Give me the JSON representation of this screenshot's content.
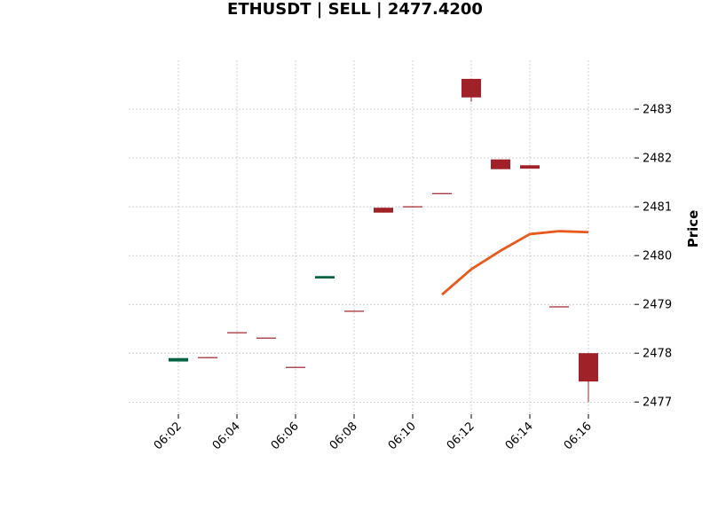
{
  "chart_data": {
    "type": "candlestick",
    "title": "ETHUSDT | SELL | 2477.4200",
    "xlabel": "",
    "ylabel": "Price",
    "ylim": [
      2476.75,
      2484.0
    ],
    "y_ticks": [
      2477,
      2478,
      2479,
      2480,
      2481,
      2482,
      2483
    ],
    "x_ticks": [
      "06:02",
      "06:04",
      "06:06",
      "06:08",
      "06:10",
      "06:12",
      "06:14",
      "06:16"
    ],
    "grid": true,
    "colors": {
      "up": "#006340",
      "down": "#A02128",
      "ma": "#E8591C",
      "grid": "#b0b0b0"
    },
    "candles": [
      {
        "time": "06:02",
        "open": 2477.83,
        "high": 2477.9,
        "low": 2477.83,
        "close": 2477.9
      },
      {
        "time": "06:03",
        "open": 2477.92,
        "high": 2477.92,
        "low": 2477.91,
        "close": 2477.91
      },
      {
        "time": "06:04",
        "open": 2478.43,
        "high": 2478.43,
        "low": 2478.42,
        "close": 2478.42
      },
      {
        "time": "06:05",
        "open": 2478.32,
        "high": 2478.32,
        "low": 2478.31,
        "close": 2478.31
      },
      {
        "time": "06:06",
        "open": 2477.72,
        "high": 2477.72,
        "low": 2477.71,
        "close": 2477.71
      },
      {
        "time": "06:07",
        "open": 2479.53,
        "high": 2479.58,
        "low": 2479.53,
        "close": 2479.58
      },
      {
        "time": "06:08",
        "open": 2478.87,
        "high": 2478.87,
        "low": 2478.86,
        "close": 2478.86
      },
      {
        "time": "06:09",
        "open": 2480.98,
        "high": 2480.98,
        "low": 2480.88,
        "close": 2480.88
      },
      {
        "time": "06:10",
        "open": 2481.01,
        "high": 2481.01,
        "low": 2481.0,
        "close": 2481.0
      },
      {
        "time": "06:11",
        "open": 2481.28,
        "high": 2481.28,
        "low": 2481.27,
        "close": 2481.27
      },
      {
        "time": "06:12",
        "open": 2483.62,
        "high": 2483.62,
        "low": 2483.15,
        "close": 2483.24
      },
      {
        "time": "06:13",
        "open": 2481.97,
        "high": 2481.97,
        "low": 2481.77,
        "close": 2481.77
      },
      {
        "time": "06:14",
        "open": 2481.85,
        "high": 2481.85,
        "low": 2481.78,
        "close": 2481.78
      },
      {
        "time": "06:15",
        "open": 2478.96,
        "high": 2478.96,
        "low": 2478.95,
        "close": 2478.95
      },
      {
        "time": "06:16",
        "open": 2478.0,
        "high": 2478.0,
        "low": 2477.0,
        "close": 2477.42
      }
    ],
    "moving_average": {
      "start_index": 9,
      "values": [
        2479.2,
        2479.72,
        2480.1,
        2480.44,
        2480.5,
        2480.48
      ]
    }
  }
}
